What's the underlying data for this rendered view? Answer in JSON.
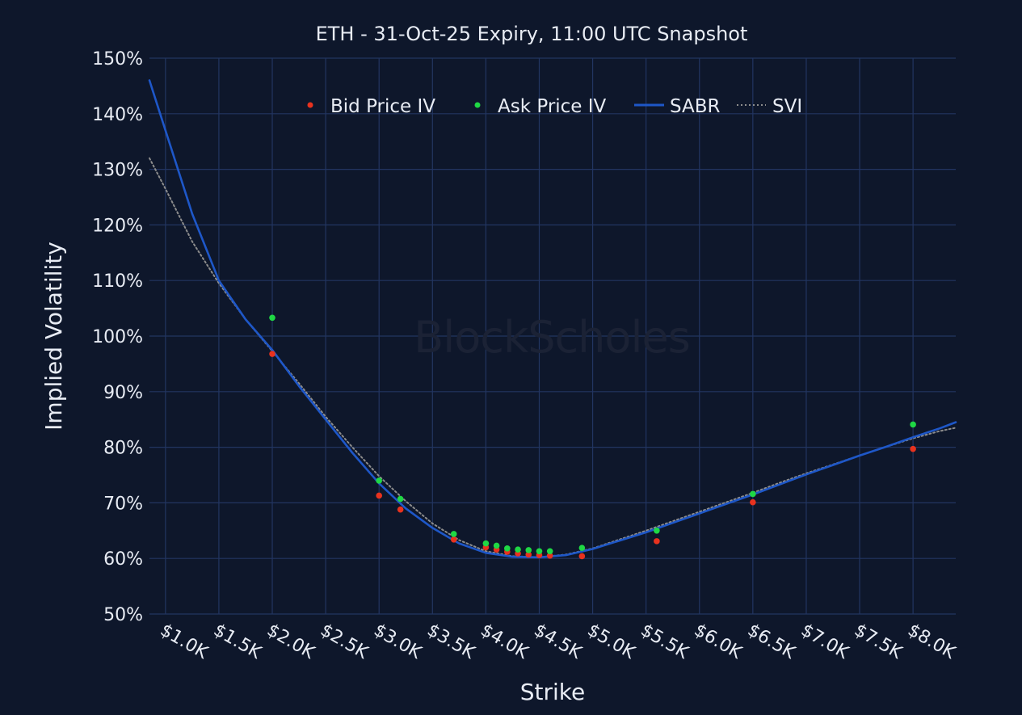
{
  "watermark": "BlockScholes",
  "chart_data": {
    "type": "scatter",
    "title": "ETH - 31-Oct-25 Expiry, 11:00 UTC Snapshot",
    "xlabel": "Strike",
    "ylabel": "Implied Volatility",
    "xlim": [
      850,
      8400
    ],
    "ylim": [
      50,
      150
    ],
    "x_ticks": [
      1000,
      1500,
      2000,
      2500,
      3000,
      3500,
      4000,
      4500,
      5000,
      5500,
      6000,
      6500,
      7000,
      7500,
      8000
    ],
    "x_tick_labels": [
      "$1.0K",
      "$1.5K",
      "$2.0K",
      "$2.5K",
      "$3.0K",
      "$3.5K",
      "$4.0K",
      "$4.5K",
      "$5.0K",
      "$5.5K",
      "$6.0K",
      "$6.5K",
      "$7.0K",
      "$7.5K",
      "$8.0K"
    ],
    "y_ticks": [
      50,
      60,
      70,
      80,
      90,
      100,
      110,
      120,
      130,
      140,
      150
    ],
    "y_tick_labels": [
      "50%",
      "60%",
      "70%",
      "80%",
      "90%",
      "100%",
      "110%",
      "120%",
      "130%",
      "140%",
      "150%"
    ],
    "grid": true,
    "legend_position": "top-center",
    "series": [
      {
        "name": "Bid Price IV",
        "kind": "points",
        "color": "#e8321e",
        "x": [
          2000,
          3000,
          3200,
          3700,
          4000,
          4100,
          4200,
          4300,
          4400,
          4500,
          4600,
          4900,
          5600,
          6500,
          8000
        ],
        "y": [
          96.8,
          71.3,
          68.8,
          63.4,
          62.0,
          61.6,
          61.2,
          60.9,
          60.7,
          60.6,
          60.5,
          60.4,
          63.1,
          70.1,
          79.7
        ]
      },
      {
        "name": "Ask Price IV",
        "kind": "points",
        "color": "#1fd844",
        "x": [
          2000,
          3000,
          3200,
          3700,
          4000,
          4100,
          4200,
          4300,
          4400,
          4500,
          4600,
          4900,
          5600,
          6500,
          8000
        ],
        "y": [
          103.3,
          74.0,
          70.7,
          64.4,
          62.7,
          62.3,
          61.8,
          61.6,
          61.5,
          61.3,
          61.3,
          61.9,
          65.0,
          71.6,
          84.1
        ]
      },
      {
        "name": "SABR",
        "kind": "line",
        "color": "#1e57c8",
        "x": [
          850,
          1000,
          1250,
          1500,
          1750,
          2000,
          2250,
          2500,
          2750,
          3000,
          3250,
          3500,
          3750,
          4000,
          4250,
          4500,
          4750,
          5000,
          5250,
          5500,
          5750,
          6000,
          6250,
          6500,
          6750,
          7000,
          7250,
          7500,
          7750,
          8000,
          8250,
          8400
        ],
        "y": [
          146.0,
          137.0,
          122.0,
          110.0,
          103.0,
          97.5,
          91.0,
          85.0,
          79.0,
          73.5,
          69.0,
          65.5,
          62.7,
          61.0,
          60.3,
          60.2,
          60.6,
          61.7,
          63.2,
          64.7,
          66.4,
          68.1,
          69.8,
          71.5,
          73.3,
          75.1,
          76.8,
          78.5,
          80.1,
          81.8,
          83.4,
          84.5
        ]
      },
      {
        "name": "SVI",
        "kind": "dotted-line",
        "color": "#8c8c8c",
        "x": [
          850,
          1000,
          1250,
          1500,
          1750,
          2000,
          2250,
          2500,
          2750,
          3000,
          3250,
          3500,
          3750,
          4000,
          4250,
          4500,
          4750,
          5000,
          5250,
          5500,
          5750,
          6000,
          6250,
          6500,
          6750,
          7000,
          7250,
          7500,
          7750,
          8000,
          8250,
          8400
        ],
        "y": [
          132.0,
          126.5,
          117.0,
          109.5,
          103.0,
          97.3,
          91.5,
          85.5,
          80.0,
          74.8,
          70.3,
          66.3,
          63.3,
          61.3,
          60.4,
          60.2,
          60.7,
          61.8,
          63.4,
          65.0,
          66.7,
          68.4,
          70.1,
          71.8,
          73.6,
          75.3,
          76.9,
          78.5,
          80.1,
          81.6,
          82.9,
          83.5
        ]
      }
    ]
  }
}
